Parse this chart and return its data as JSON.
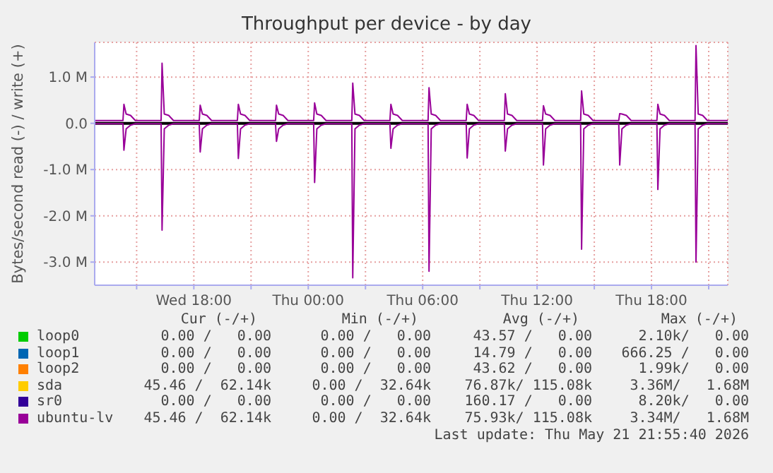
{
  "chart_data": {
    "type": "line",
    "title": "Throughput per device - by day",
    "ylabel": "Bytes/second read (-) / write (+)",
    "x": [
      "2026-05-20T12:48",
      "2026-05-20T14:17",
      "2026-05-20T14:20",
      "2026-05-20T14:27",
      "2026-05-20T14:41",
      "2026-05-20T14:56",
      "2026-05-20T16:17",
      "2026-05-20T16:20",
      "2026-05-20T16:27",
      "2026-05-20T16:41",
      "2026-05-20T16:56",
      "2026-05-20T18:17",
      "2026-05-20T18:20",
      "2026-05-20T18:27",
      "2026-05-20T18:41",
      "2026-05-20T18:56",
      "2026-05-20T20:17",
      "2026-05-20T20:20",
      "2026-05-20T20:27",
      "2026-05-20T20:41",
      "2026-05-20T20:56",
      "2026-05-20T22:17",
      "2026-05-20T22:20",
      "2026-05-20T22:27",
      "2026-05-20T22:41",
      "2026-05-20T22:56",
      "2026-05-21T00:17",
      "2026-05-21T00:20",
      "2026-05-21T00:27",
      "2026-05-21T00:41",
      "2026-05-21T00:56",
      "2026-05-21T02:17",
      "2026-05-21T02:20",
      "2026-05-21T02:27",
      "2026-05-21T02:41",
      "2026-05-21T02:56",
      "2026-05-21T04:17",
      "2026-05-21T04:20",
      "2026-05-21T04:27",
      "2026-05-21T04:41",
      "2026-05-21T04:56",
      "2026-05-21T06:17",
      "2026-05-21T06:20",
      "2026-05-21T06:27",
      "2026-05-21T06:41",
      "2026-05-21T06:56",
      "2026-05-21T08:17",
      "2026-05-21T08:20",
      "2026-05-21T08:27",
      "2026-05-21T08:41",
      "2026-05-21T08:56",
      "2026-05-21T10:17",
      "2026-05-21T10:20",
      "2026-05-21T10:27",
      "2026-05-21T10:41",
      "2026-05-21T10:56",
      "2026-05-21T12:17",
      "2026-05-21T12:20",
      "2026-05-21T12:27",
      "2026-05-21T12:41",
      "2026-05-21T12:56",
      "2026-05-21T14:17",
      "2026-05-21T14:20",
      "2026-05-21T14:27",
      "2026-05-21T14:41",
      "2026-05-21T14:56",
      "2026-05-21T16:17",
      "2026-05-21T16:20",
      "2026-05-21T16:27",
      "2026-05-21T16:41",
      "2026-05-21T16:56",
      "2026-05-21T18:17",
      "2026-05-21T18:20",
      "2026-05-21T18:27",
      "2026-05-21T18:41",
      "2026-05-21T18:56",
      "2026-05-21T20:17",
      "2026-05-21T20:20",
      "2026-05-21T20:27",
      "2026-05-21T20:41",
      "2026-05-21T20:56",
      "2026-05-21T22:00"
    ],
    "series": [
      {
        "name": "loop0",
        "color": "#00cc00",
        "values": [
          null,
          null,
          null,
          null,
          null,
          null,
          null,
          null,
          null,
          null,
          null,
          null,
          null,
          null,
          null,
          null,
          null,
          null,
          null,
          null,
          null,
          null,
          null,
          null,
          null,
          null,
          null,
          null,
          null,
          null,
          null,
          null,
          null,
          null,
          null,
          null,
          null,
          null,
          null,
          null,
          null,
          null,
          null,
          null,
          null,
          null,
          null,
          null,
          null,
          null,
          null,
          null,
          null,
          null,
          null,
          null,
          null,
          null,
          null,
          null,
          null,
          null,
          null,
          null,
          null,
          null,
          null,
          null,
          null,
          null,
          null,
          null,
          null,
          null,
          null,
          null,
          null,
          null,
          null,
          null,
          null,
          null
        ]
      },
      {
        "name": "loop1",
        "color": "#0066b3",
        "values": [
          null,
          null,
          null,
          null,
          null,
          null,
          null,
          null,
          null,
          null,
          null,
          null,
          null,
          null,
          null,
          null,
          null,
          null,
          null,
          null,
          null,
          null,
          null,
          null,
          null,
          null,
          null,
          null,
          null,
          null,
          null,
          null,
          null,
          null,
          null,
          null,
          null,
          null,
          null,
          null,
          null,
          null,
          null,
          null,
          null,
          null,
          null,
          null,
          null,
          null,
          null,
          null,
          null,
          null,
          null,
          null,
          null,
          null,
          null,
          null,
          null,
          null,
          null,
          null,
          null,
          null,
          null,
          null,
          null,
          null,
          null,
          null,
          null,
          null,
          null,
          null,
          null,
          null,
          null,
          null,
          null,
          null
        ]
      },
      {
        "name": "loop2",
        "color": "#ff8000",
        "values": [
          null,
          null,
          null,
          null,
          null,
          null,
          null,
          null,
          null,
          null,
          null,
          null,
          null,
          null,
          null,
          null,
          null,
          null,
          null,
          null,
          null,
          null,
          null,
          null,
          null,
          null,
          null,
          null,
          null,
          null,
          null,
          null,
          null,
          null,
          null,
          null,
          null,
          null,
          null,
          null,
          null,
          null,
          null,
          null,
          null,
          null,
          null,
          null,
          null,
          null,
          null,
          null,
          null,
          null,
          null,
          null,
          null,
          null,
          null,
          null,
          null,
          null,
          null,
          null,
          null,
          null,
          null,
          null,
          null,
          null,
          null,
          null,
          null,
          null,
          null,
          null,
          null,
          null,
          null,
          null,
          null,
          null
        ]
      },
      {
        "name": "sda",
        "color": "#ffcc00",
        "values": [
          null,
          null,
          null,
          null,
          null,
          null,
          null,
          null,
          null,
          null,
          null,
          null,
          null,
          null,
          null,
          null,
          null,
          null,
          null,
          null,
          null,
          null,
          null,
          null,
          null,
          null,
          null,
          null,
          null,
          null,
          null,
          null,
          null,
          null,
          null,
          null,
          null,
          null,
          null,
          null,
          null,
          null,
          null,
          null,
          null,
          null,
          null,
          null,
          null,
          null,
          null,
          null,
          null,
          null,
          null,
          null,
          null,
          null,
          null,
          null,
          null,
          null,
          null,
          null,
          null,
          null,
          null,
          null,
          null,
          null,
          null,
          null,
          null,
          null,
          null,
          null,
          null,
          null,
          null,
          null,
          null,
          null
        ]
      },
      {
        "name": "sr0",
        "color": "#330099",
        "values": [
          null,
          null,
          null,
          null,
          null,
          null,
          null,
          null,
          null,
          null,
          null,
          null,
          null,
          null,
          null,
          null,
          null,
          null,
          null,
          null,
          null,
          null,
          null,
          null,
          null,
          null,
          null,
          null,
          null,
          null,
          null,
          null,
          null,
          null,
          null,
          null,
          null,
          null,
          null,
          null,
          null,
          null,
          null,
          null,
          null,
          null,
          null,
          null,
          null,
          null,
          null,
          null,
          null,
          null,
          null,
          null,
          null,
          null,
          null,
          null,
          null,
          null,
          null,
          null,
          null,
          null,
          null,
          null,
          null,
          null,
          null,
          null,
          null,
          null,
          null,
          null,
          null,
          null,
          null,
          null,
          null,
          null
        ]
      },
      {
        "name": "ubuntu-lv",
        "color": "#990099",
        "values": [
          0.06,
          0.06,
          0.41,
          0.2,
          0.17,
          0.06,
          0.06,
          1.3,
          0.2,
          0.17,
          0.06,
          0.06,
          0.39,
          0.2,
          0.17,
          0.06,
          0.06,
          0.41,
          0.2,
          0.17,
          0.06,
          0.06,
          0.39,
          0.2,
          0.17,
          0.06,
          0.06,
          0.44,
          0.2,
          0.17,
          0.06,
          0.06,
          0.87,
          0.2,
          0.17,
          0.06,
          0.06,
          0.41,
          0.2,
          0.17,
          0.06,
          0.06,
          0.77,
          0.2,
          0.17,
          0.06,
          0.06,
          0.41,
          0.2,
          0.17,
          0.06,
          0.06,
          0.64,
          0.2,
          0.17,
          0.06,
          0.06,
          0.38,
          0.2,
          0.17,
          0.06,
          0.06,
          0.7,
          0.2,
          0.17,
          0.06,
          0.06,
          0.21,
          0.2,
          0.17,
          0.06,
          0.06,
          0.41,
          0.2,
          0.17,
          0.06,
          0.06,
          1.68,
          0.2,
          0.17,
          0.06,
          0.06
        ]
      },
      {
        "color": "#990099",
        "values": [
          -0.01,
          -0.01,
          -0.58,
          -0.12,
          -0.04,
          -0.01,
          -0.01,
          -2.31,
          -0.12,
          -0.04,
          -0.01,
          -0.01,
          -0.62,
          -0.12,
          -0.04,
          -0.01,
          -0.01,
          -0.76,
          -0.12,
          -0.04,
          -0.01,
          -0.01,
          -0.39,
          -0.12,
          -0.04,
          -0.01,
          -0.01,
          -1.28,
          -0.12,
          -0.04,
          -0.01,
          -0.01,
          -3.34,
          -0.12,
          -0.04,
          -0.01,
          -0.01,
          -0.54,
          -0.12,
          -0.04,
          -0.01,
          -0.01,
          -3.2,
          -0.12,
          -0.04,
          -0.01,
          -0.01,
          -0.75,
          -0.12,
          -0.04,
          -0.01,
          -0.01,
          -0.6,
          -0.12,
          -0.04,
          -0.01,
          -0.01,
          -0.9,
          -0.12,
          -0.04,
          -0.01,
          -0.01,
          -2.72,
          -0.12,
          -0.04,
          -0.01,
          -0.01,
          -0.9,
          -0.12,
          -0.04,
          -0.01,
          -0.01,
          -1.43,
          -0.12,
          -0.04,
          -0.01,
          -0.01,
          -3.0,
          -0.12,
          -0.04,
          -0.01,
          -0.01
        ]
      }
    ],
    "xlim": [
      "2026-05-20T12:48",
      "2026-05-21T22:00"
    ],
    "xticks": [
      {
        "value": "2026-05-20T15:00",
        "label": null
      },
      {
        "value": "2026-05-20T18:00",
        "label": "Wed 18:00"
      },
      {
        "value": "2026-05-20T21:00",
        "label": null
      },
      {
        "value": "2026-05-21T00:00",
        "label": "Thu 00:00"
      },
      {
        "value": "2026-05-21T03:00",
        "label": null
      },
      {
        "value": "2026-05-21T06:00",
        "label": "Thu 06:00"
      },
      {
        "value": "2026-05-21T09:00",
        "label": null
      },
      {
        "value": "2026-05-21T12:00",
        "label": "Thu 12:00"
      },
      {
        "value": "2026-05-21T15:00",
        "label": null
      },
      {
        "value": "2026-05-21T18:00",
        "label": "Thu 18:00"
      },
      {
        "value": "2026-05-21T21:00",
        "label": null
      }
    ],
    "ylim": [
      -3.5,
      1.75
    ],
    "yticks": [
      {
        "value": -3,
        "label": "-3.0 M"
      },
      {
        "value": -2,
        "label": "-2.0 M"
      },
      {
        "value": -1,
        "label": "-1.0 M"
      },
      {
        "value": 0,
        "label": "0.0"
      },
      {
        "value": 1,
        "label": "1.0 M"
      }
    ],
    "ref_lines": [
      {
        "axis": "y",
        "value": 0,
        "color": "#000000"
      }
    ],
    "grid": true,
    "legend": "bottom",
    "annotations": [
      "Cur (-/+)",
      "Min (-/+)",
      "Avg (-/+)",
      "Max (-/+)",
      "0.00 /   0.00",
      "0.00 /   0.00",
      "43.57 /   0.00",
      "2.10k/   0.00",
      "0.00 /   0.00",
      "0.00 /   0.00",
      "14.79 /   0.00",
      "666.25 /   0.00",
      "0.00 /   0.00",
      "0.00 /   0.00",
      "43.62 /   0.00",
      "1.99k/   0.00",
      "45.46 /  62.14k",
      "0.00 /  32.64k",
      "76.87k/ 115.08k",
      "3.36M/   1.68M",
      "0.00 /   0.00",
      "0.00 /   0.00",
      "160.17 /   0.00",
      "8.20k/   0.00",
      "45.46 /  62.14k",
      "0.00 /  32.64k",
      "75.93k/ 115.08k",
      "3.34M/   1.68M",
      "Last update: Thu May 21 21:55:40 2026"
    ]
  }
}
